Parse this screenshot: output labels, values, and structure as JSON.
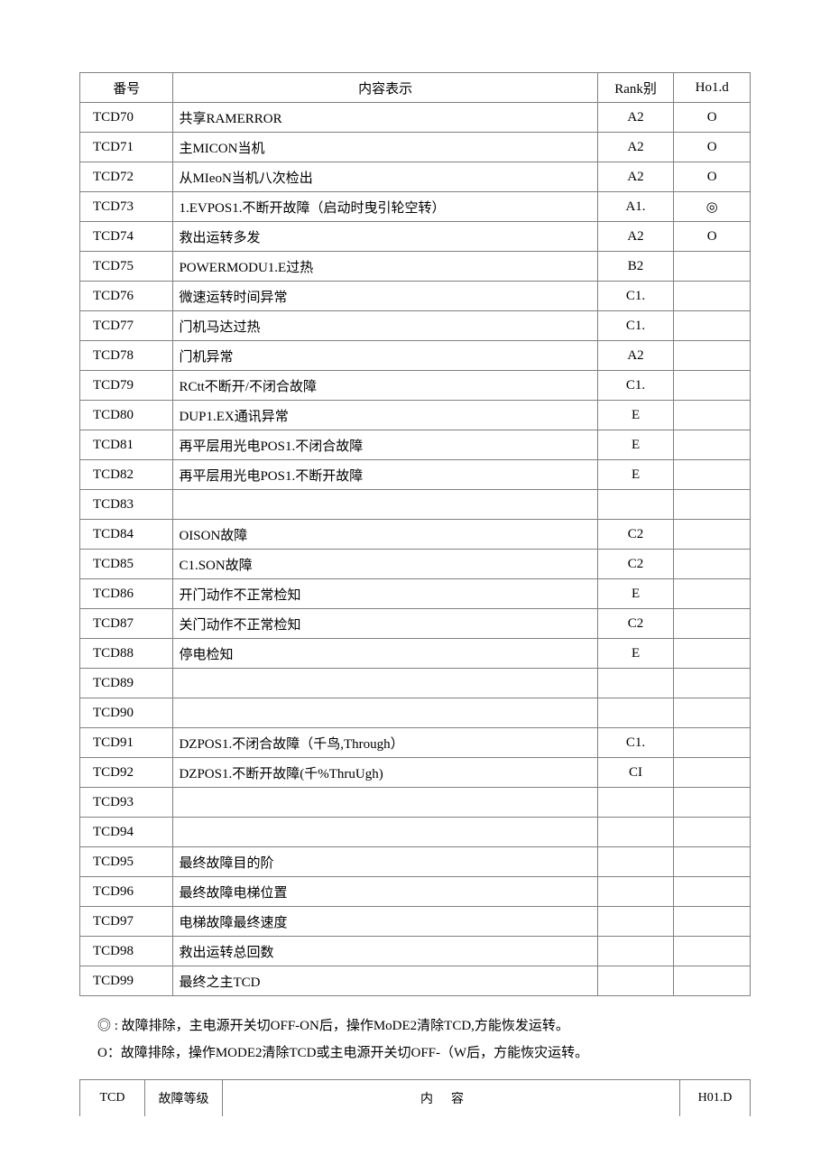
{
  "table1": {
    "headers": [
      "番号",
      "内容表示",
      "Rank别",
      "Ho1.d"
    ],
    "rows": [
      {
        "id": "TCD70",
        "desc": "共享RAMERROR",
        "rank": "A2",
        "hold": "O"
      },
      {
        "id": "TCD71",
        "desc": "主MICON当机",
        "rank": "A2",
        "hold": "O"
      },
      {
        "id": "TCD72",
        "desc": "从MIeoN当机八次检出",
        "rank": "A2",
        "hold": "O"
      },
      {
        "id": "TCD73",
        "desc": "1.EVPOS1.不断开故障（启动时曳引轮空转）",
        "rank": "A1.",
        "hold": "◎"
      },
      {
        "id": "TCD74",
        "desc": "救出运转多发",
        "rank": "A2",
        "hold": "O"
      },
      {
        "id": "TCD75",
        "desc": "POWERMODU1.E过热",
        "rank": "B2",
        "hold": ""
      },
      {
        "id": "TCD76",
        "desc": "微速运转时间异常",
        "rank": "C1.",
        "hold": ""
      },
      {
        "id": "TCD77",
        "desc": "门机马达过热",
        "rank": "C1.",
        "hold": ""
      },
      {
        "id": "TCD78",
        "desc": "门机异常",
        "rank": "A2",
        "hold": ""
      },
      {
        "id": "TCD79",
        "desc": "RCtt不断开/不闭合故障",
        "rank": "C1.",
        "hold": ""
      },
      {
        "id": "TCD80",
        "desc": "DUP1.EX通讯异常",
        "rank": "E",
        "hold": ""
      },
      {
        "id": "TCD81",
        "desc": "再平层用光电POS1.不闭合故障",
        "rank": "E",
        "hold": ""
      },
      {
        "id": "TCD82",
        "desc": "再平层用光电POS1.不断开故障",
        "rank": "E",
        "hold": ""
      },
      {
        "id": "TCD83",
        "desc": "",
        "rank": "",
        "hold": ""
      },
      {
        "id": "TCD84",
        "desc": "OISON故障",
        "rank": "C2",
        "hold": ""
      },
      {
        "id": "TCD85",
        "desc": "C1.SON故障",
        "rank": "C2",
        "hold": ""
      },
      {
        "id": "TCD86",
        "desc": "开门动作不正常检知",
        "rank": "E",
        "hold": ""
      },
      {
        "id": "TCD87",
        "desc": "关门动作不正常检知",
        "rank": "C2",
        "hold": ""
      },
      {
        "id": "TCD88",
        "desc": "停电检知",
        "rank": "E",
        "hold": ""
      },
      {
        "id": "TCD89",
        "desc": "",
        "rank": "",
        "hold": ""
      },
      {
        "id": "TCD90",
        "desc": "",
        "rank": "",
        "hold": ""
      },
      {
        "id": "TCD91",
        "desc": "DZPOS1.不闭合故障（千鸟,Through）",
        "rank": "C1.",
        "hold": ""
      },
      {
        "id": "TCD92",
        "desc": "DZPOS1.不断开故障(千%ThruUgh)",
        "rank": "CI",
        "hold": ""
      },
      {
        "id": "TCD93",
        "desc": "",
        "rank": "",
        "hold": ""
      },
      {
        "id": "TCD94",
        "desc": "",
        "rank": "",
        "hold": ""
      },
      {
        "id": "TCD95",
        "desc": "最终故障目的阶",
        "rank": "",
        "hold": ""
      },
      {
        "id": "TCD96",
        "desc": "最终故障电梯位置",
        "rank": "",
        "hold": ""
      },
      {
        "id": "TCD97",
        "desc": "电梯故障最终速度",
        "rank": "",
        "hold": ""
      },
      {
        "id": "TCD98",
        "desc": "救出运转总回数",
        "rank": "",
        "hold": ""
      },
      {
        "id": "TCD99",
        "desc": "最终之主TCD",
        "rank": "",
        "hold": ""
      }
    ]
  },
  "notes": [
    "◎ : 故障排除，主电源开关切OFF-ON后，操作MoDE2清除TCD,方能恢发运转。",
    "O：故障排除，操作MODE2清除TCD或主电源开关切OFF-（W后，方能恢灾运转。"
  ],
  "table2": {
    "headers": [
      "TCD",
      "故障等级",
      "内容",
      "H01.D"
    ],
    "col_widths": [
      "72px",
      "86px",
      "auto",
      "78px"
    ]
  }
}
